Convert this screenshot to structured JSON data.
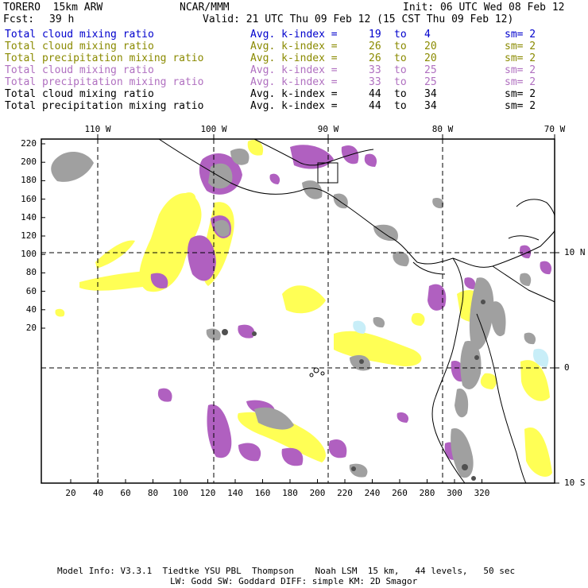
{
  "header": {
    "model": "TORERO  15km ARW",
    "org": "NCAR/MMM",
    "init": "Init: 06 UTC Wed 08 Feb 12",
    "fcst_label": "Fcst:",
    "fcst_value": "39 h",
    "valid": "Valid: 21 UTC Thu 09 Feb 12 (15 CST Thu 09 Feb 12)"
  },
  "legend": [
    {
      "field": "Total cloud mixing ratio",
      "kindex": "Avg. k-index =",
      "a": "19",
      "to": "to",
      "b": "4",
      "sm": "sm= 2",
      "color": "#0000cc"
    },
    {
      "field": "Total cloud mixing ratio",
      "kindex": "Avg. k-index =",
      "a": "26",
      "to": "to",
      "b": "20",
      "sm": "sm= 2",
      "color": "#8a8a00"
    },
    {
      "field": "Total precipitation mixing ratio",
      "kindex": "Avg. k-index =",
      "a": "26",
      "to": "to",
      "b": "20",
      "sm": "sm= 2",
      "color": "#8a8a00"
    },
    {
      "field": "Total cloud mixing ratio",
      "kindex": "Avg. k-index =",
      "a": "33",
      "to": "to",
      "b": "25",
      "sm": "sm= 2",
      "color": "#b070c0"
    },
    {
      "field": "Total precipitation mixing ratio",
      "kindex": "Avg. k-index =",
      "a": "33",
      "to": "to",
      "b": "25",
      "sm": "sm= 2",
      "color": "#b070c0"
    },
    {
      "field": "Total cloud mixing ratio",
      "kindex": "Avg. k-index =",
      "a": "44",
      "to": "to",
      "b": "34",
      "sm": "sm= 2",
      "color": "#000000"
    },
    {
      "field": "Total precipitation mixing ratio",
      "kindex": "Avg. k-index =",
      "a": "44",
      "to": "to",
      "b": "34",
      "sm": "sm= 2",
      "color": "#000000"
    }
  ],
  "axes": {
    "top_lon": [
      "110 W",
      "100 W",
      "90 W",
      "80 W",
      "70 W"
    ],
    "right_lat": [
      "10 N",
      "0",
      "10 S"
    ],
    "left_ticks": [
      "220",
      "200",
      "180",
      "160",
      "140",
      "120",
      "100",
      "80",
      "60",
      "40",
      "20"
    ],
    "bottom_ticks": [
      "20",
      "40",
      "60",
      "80",
      "100",
      "120",
      "140",
      "160",
      "180",
      "200",
      "220",
      "240",
      "260",
      "280",
      "300",
      "320"
    ]
  },
  "colors": {
    "yellow": "#ffff55",
    "purple": "#b060c0",
    "gray": "#a0a0a0",
    "dark": "#505050",
    "cyan": "#c8eef8"
  },
  "footer": {
    "line1": "Model Info: V3.3.1  Tiedtke YSU PBL  Thompson    Noah LSM  15 km,   44 levels,   50 sec",
    "line2": "LW: Godd SW: Goddard DIFF: simple KM: 2D Smagor"
  }
}
